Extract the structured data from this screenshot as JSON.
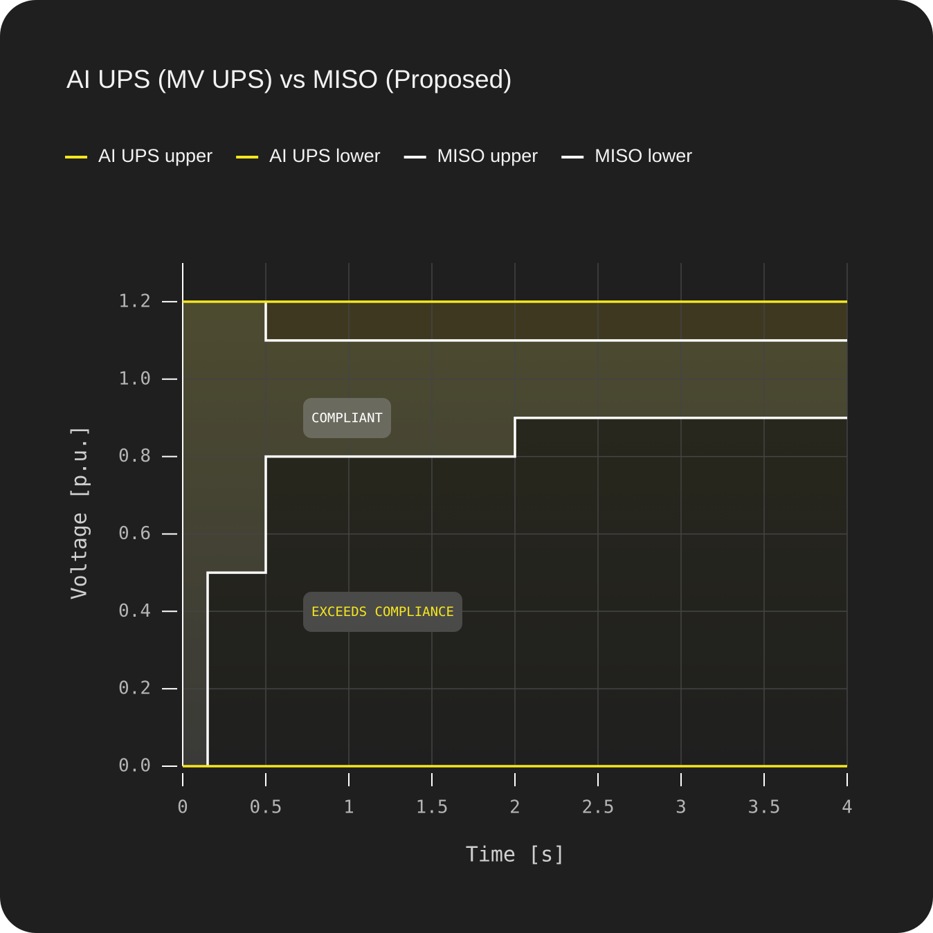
{
  "chart_data": {
    "type": "line",
    "title": "AI UPS (MV UPS) vs MISO (Proposed)",
    "x_label": "Time [s]",
    "y_label": "Voltage [p.u.]",
    "series": [
      {
        "name": "AI UPS upper",
        "color": "#f5e61e",
        "x": [
          0,
          4
        ],
        "values": [
          1.2,
          1.2
        ]
      },
      {
        "name": "AI UPS lower",
        "color": "#f5e61e",
        "x": [
          0,
          4
        ],
        "values": [
          0,
          0
        ]
      },
      {
        "name": "MISO upper",
        "color": "#ffffff",
        "x": [
          0.5,
          0.5,
          4
        ],
        "values": [
          1.2,
          1.1,
          1.1
        ]
      },
      {
        "name": "MISO lower",
        "color": "#ffffff",
        "x": [
          0.15,
          0.15,
          0.5,
          0.5,
          2,
          2,
          4
        ],
        "values": [
          0,
          0.5,
          0.5,
          0.8,
          0.8,
          0.9,
          0.9
        ]
      }
    ],
    "annotations": [
      {
        "text": "COMPLIANT",
        "color": "#ffffff"
      },
      {
        "text": "EXCEEDS COMPLIANCE",
        "color": "#f5e61e"
      }
    ],
    "xlim": [
      0,
      4
    ],
    "xticks": [
      0,
      0.5,
      1,
      1.5,
      2,
      2.5,
      3,
      3.5,
      4
    ],
    "ylim": [
      0,
      1.3
    ],
    "yticks": [
      {
        "value": 0,
        "label": "0.0"
      },
      0.2,
      0.4,
      0.6,
      0.8,
      {
        "value": 1,
        "label": "1.0"
      },
      1.2
    ],
    "grid": true
  }
}
